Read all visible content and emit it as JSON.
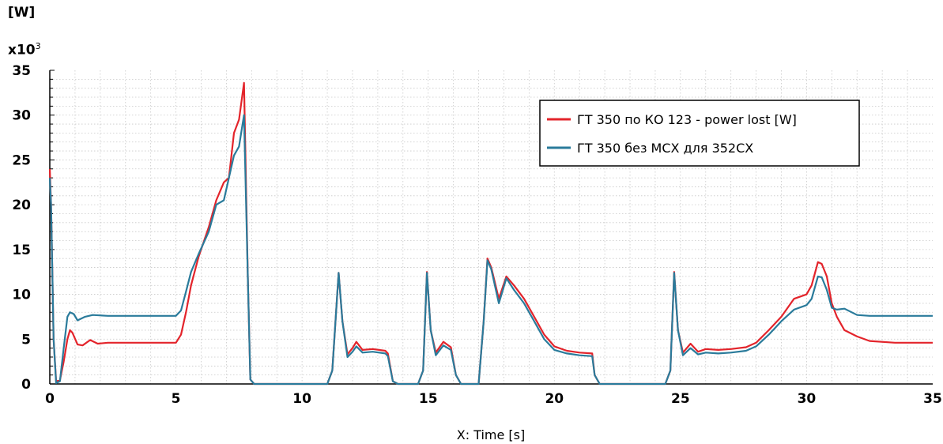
{
  "y_unit": "[W]",
  "y_multiplier_base": "x10",
  "y_multiplier_exp": "3",
  "chart_data": {
    "type": "line",
    "xlabel": "X: Time [s]",
    "ylabel": "",
    "xlim": [
      0,
      35
    ],
    "ylim": [
      0,
      35
    ],
    "x_ticks": [
      "0",
      "5",
      "10",
      "15",
      "20",
      "25",
      "30",
      "35"
    ],
    "y_ticks": [
      "0",
      "5",
      "10",
      "15",
      "20",
      "25",
      "30",
      "35"
    ],
    "grid": true,
    "legend_position": "top-right",
    "series": [
      {
        "name": "ГТ 350 по КО 123 - power lost [W]",
        "color": "#e3242b",
        "points": [
          [
            0,
            24
          ],
          [
            0.05,
            20
          ],
          [
            0.15,
            5
          ],
          [
            0.25,
            0.3
          ],
          [
            0.4,
            0.4
          ],
          [
            0.55,
            2.5
          ],
          [
            0.7,
            5
          ],
          [
            0.8,
            6
          ],
          [
            0.9,
            5.7
          ],
          [
            1.1,
            4.4
          ],
          [
            1.3,
            4.3
          ],
          [
            1.6,
            4.9
          ],
          [
            1.9,
            4.5
          ],
          [
            2.3,
            4.6
          ],
          [
            3,
            4.6
          ],
          [
            4,
            4.6
          ],
          [
            5.0,
            4.6
          ],
          [
            5.2,
            5.5
          ],
          [
            5.4,
            8
          ],
          [
            5.6,
            11
          ],
          [
            5.9,
            14.2
          ],
          [
            6.3,
            17.5
          ],
          [
            6.6,
            20.5
          ],
          [
            6.9,
            22.5
          ],
          [
            7.1,
            23
          ],
          [
            7.3,
            28
          ],
          [
            7.5,
            29.5
          ],
          [
            7.7,
            33.6
          ],
          [
            7.85,
            12
          ],
          [
            7.95,
            0.5
          ],
          [
            8.1,
            0
          ],
          [
            11.0,
            0
          ],
          [
            11.2,
            1.5
          ],
          [
            11.45,
            12.4
          ],
          [
            11.6,
            7
          ],
          [
            11.8,
            3.3
          ],
          [
            12.0,
            4
          ],
          [
            12.15,
            4.7
          ],
          [
            12.4,
            3.8
          ],
          [
            12.8,
            3.9
          ],
          [
            13.3,
            3.7
          ],
          [
            13.4,
            3.4
          ],
          [
            13.6,
            0.3
          ],
          [
            13.8,
            0
          ],
          [
            14.6,
            0
          ],
          [
            14.8,
            1.5
          ],
          [
            14.95,
            12.5
          ],
          [
            15.1,
            6
          ],
          [
            15.3,
            3.5
          ],
          [
            15.6,
            4.7
          ],
          [
            15.9,
            4.1
          ],
          [
            16.1,
            1
          ],
          [
            16.3,
            0
          ],
          [
            17.0,
            0
          ],
          [
            17.2,
            7
          ],
          [
            17.35,
            14
          ],
          [
            17.5,
            13
          ],
          [
            17.8,
            9.5
          ],
          [
            18.1,
            12
          ],
          [
            18.4,
            11
          ],
          [
            18.8,
            9.5
          ],
          [
            19.2,
            7.5
          ],
          [
            19.6,
            5.5
          ],
          [
            20.0,
            4.2
          ],
          [
            20.5,
            3.7
          ],
          [
            21.0,
            3.5
          ],
          [
            21.5,
            3.4
          ],
          [
            21.6,
            1
          ],
          [
            21.8,
            0
          ],
          [
            24.4,
            0
          ],
          [
            24.6,
            1.5
          ],
          [
            24.75,
            12.5
          ],
          [
            24.9,
            6
          ],
          [
            25.1,
            3.5
          ],
          [
            25.4,
            4.5
          ],
          [
            25.7,
            3.6
          ],
          [
            26.0,
            3.9
          ],
          [
            26.5,
            3.8
          ],
          [
            27.0,
            3.9
          ],
          [
            27.6,
            4.1
          ],
          [
            28.0,
            4.6
          ],
          [
            28.5,
            6
          ],
          [
            29.0,
            7.5
          ],
          [
            29.5,
            9.5
          ],
          [
            30.0,
            10
          ],
          [
            30.2,
            11
          ],
          [
            30.45,
            13.6
          ],
          [
            30.6,
            13.4
          ],
          [
            30.8,
            12
          ],
          [
            31.0,
            9
          ],
          [
            31.2,
            7.5
          ],
          [
            31.5,
            6
          ],
          [
            32.0,
            5.3
          ],
          [
            32.5,
            4.8
          ],
          [
            33.5,
            4.6
          ],
          [
            35,
            4.6
          ]
        ]
      },
      {
        "name": "ГТ 350 без МСХ для 352СХ",
        "color": "#2a7b9b",
        "points": [
          [
            0,
            23
          ],
          [
            0.05,
            20
          ],
          [
            0.15,
            5
          ],
          [
            0.25,
            0.1
          ],
          [
            0.4,
            0.3
          ],
          [
            0.55,
            4
          ],
          [
            0.7,
            7.5
          ],
          [
            0.8,
            8
          ],
          [
            0.95,
            7.8
          ],
          [
            1.1,
            7.1
          ],
          [
            1.4,
            7.5
          ],
          [
            1.7,
            7.7
          ],
          [
            2.3,
            7.6
          ],
          [
            3,
            7.6
          ],
          [
            4,
            7.6
          ],
          [
            5.0,
            7.6
          ],
          [
            5.2,
            8.2
          ],
          [
            5.4,
            10.3
          ],
          [
            5.6,
            12.5
          ],
          [
            5.9,
            14.5
          ],
          [
            6.3,
            17
          ],
          [
            6.6,
            20
          ],
          [
            6.9,
            20.5
          ],
          [
            7.1,
            23
          ],
          [
            7.3,
            25.5
          ],
          [
            7.5,
            26.5
          ],
          [
            7.7,
            30
          ],
          [
            7.85,
            12
          ],
          [
            7.95,
            0.5
          ],
          [
            8.1,
            0
          ],
          [
            11.0,
            0
          ],
          [
            11.2,
            1.5
          ],
          [
            11.45,
            12.4
          ],
          [
            11.6,
            7
          ],
          [
            11.8,
            3
          ],
          [
            12.0,
            3.6
          ],
          [
            12.15,
            4.2
          ],
          [
            12.4,
            3.5
          ],
          [
            12.8,
            3.6
          ],
          [
            13.3,
            3.4
          ],
          [
            13.4,
            3.1
          ],
          [
            13.6,
            0.3
          ],
          [
            13.8,
            0
          ],
          [
            14.6,
            0
          ],
          [
            14.8,
            1.5
          ],
          [
            14.95,
            12.4
          ],
          [
            15.1,
            6
          ],
          [
            15.3,
            3.2
          ],
          [
            15.6,
            4.3
          ],
          [
            15.9,
            3.8
          ],
          [
            16.1,
            1
          ],
          [
            16.3,
            0
          ],
          [
            17.0,
            0
          ],
          [
            17.2,
            7
          ],
          [
            17.35,
            13.8
          ],
          [
            17.5,
            12.8
          ],
          [
            17.8,
            9
          ],
          [
            18.1,
            11.8
          ],
          [
            18.4,
            10.5
          ],
          [
            18.8,
            9
          ],
          [
            19.2,
            7
          ],
          [
            19.6,
            5
          ],
          [
            20.0,
            3.8
          ],
          [
            20.5,
            3.4
          ],
          [
            21.0,
            3.2
          ],
          [
            21.5,
            3.1
          ],
          [
            21.6,
            1
          ],
          [
            21.8,
            0
          ],
          [
            24.4,
            0
          ],
          [
            24.6,
            1.5
          ],
          [
            24.75,
            12.4
          ],
          [
            24.9,
            6
          ],
          [
            25.1,
            3.2
          ],
          [
            25.4,
            4
          ],
          [
            25.7,
            3.3
          ],
          [
            26.0,
            3.5
          ],
          [
            26.5,
            3.4
          ],
          [
            27.0,
            3.5
          ],
          [
            27.6,
            3.7
          ],
          [
            28.0,
            4.2
          ],
          [
            28.5,
            5.5
          ],
          [
            29.0,
            7
          ],
          [
            29.5,
            8.3
          ],
          [
            30.0,
            8.8
          ],
          [
            30.2,
            9.5
          ],
          [
            30.45,
            12
          ],
          [
            30.6,
            11.9
          ],
          [
            30.8,
            10.5
          ],
          [
            31.0,
            8.5
          ],
          [
            31.2,
            8.3
          ],
          [
            31.5,
            8.4
          ],
          [
            32.0,
            7.7
          ],
          [
            32.5,
            7.6
          ],
          [
            33.5,
            7.6
          ],
          [
            35,
            7.6
          ]
        ]
      }
    ]
  }
}
